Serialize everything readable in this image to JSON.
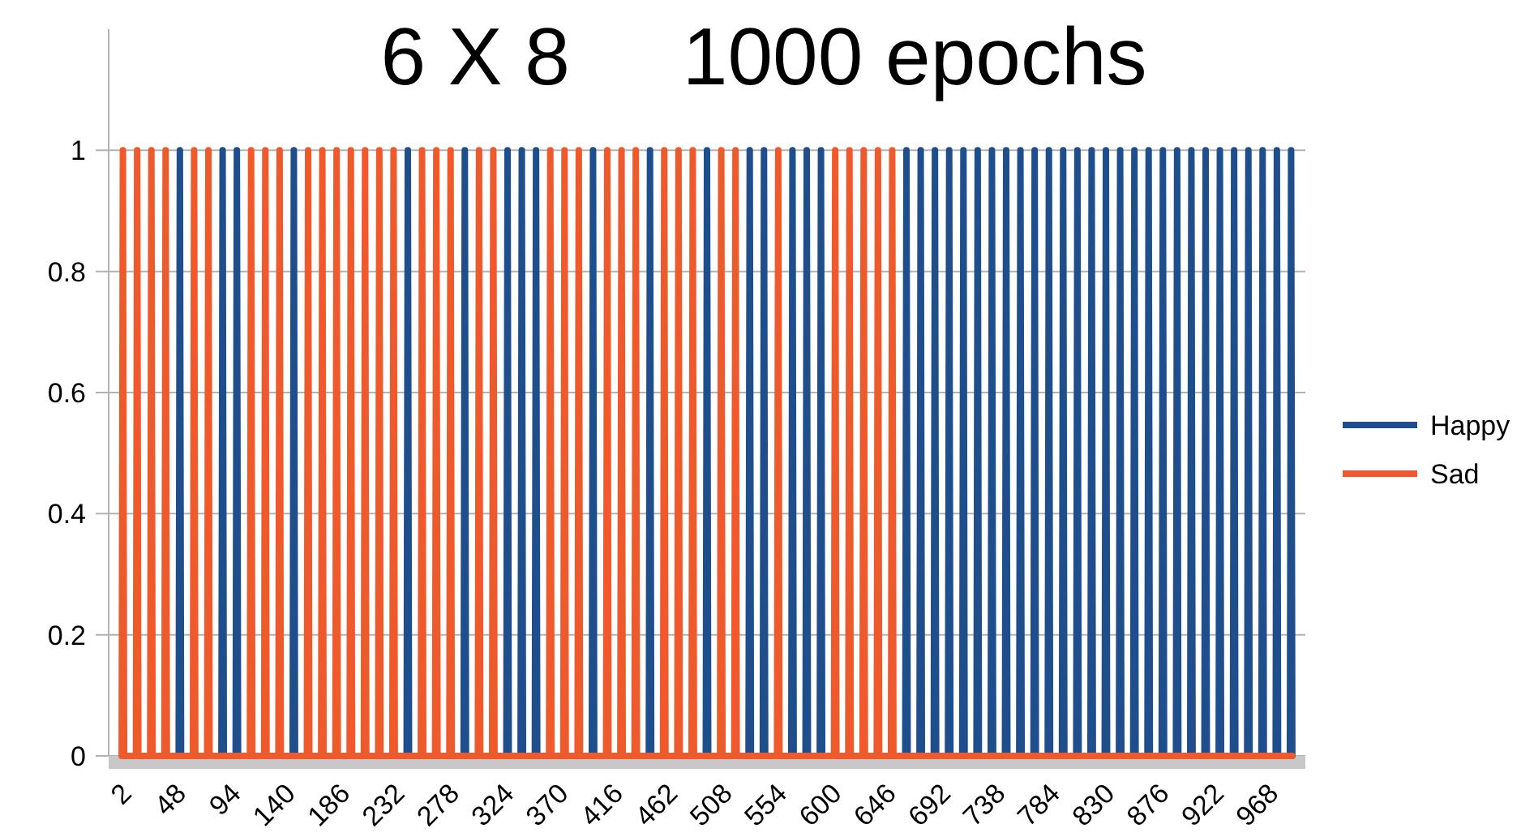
{
  "chart_data": {
    "type": "line",
    "title": "6 X 8     1000 epochs",
    "x": [
      5,
      6,
      7,
      17,
      18,
      19,
      29,
      30,
      31,
      41,
      42,
      43,
      53,
      54,
      55,
      65,
      66,
      67,
      77,
      78,
      79,
      89,
      90,
      91,
      101,
      102,
      103,
      113,
      114,
      115,
      125,
      126,
      127,
      137,
      138,
      139,
      149,
      150,
      151,
      161,
      162,
      163,
      173,
      174,
      175,
      185,
      186,
      187,
      197,
      198,
      199,
      209,
      210,
      211,
      221,
      222,
      223,
      233,
      234,
      235,
      245,
      246,
      247,
      257,
      258,
      259,
      269,
      270,
      271,
      281,
      282,
      283,
      293,
      294,
      295,
      305,
      306,
      307,
      317,
      318,
      319,
      329,
      330,
      331,
      341,
      342,
      343,
      353,
      354,
      355,
      365,
      366,
      367,
      377,
      378,
      379,
      389,
      390,
      391,
      401,
      402,
      403,
      413,
      414,
      415,
      425,
      426,
      427,
      437,
      438,
      439,
      449,
      450,
      451,
      461,
      462,
      463,
      473,
      474,
      475,
      485,
      486,
      487,
      497,
      498,
      499,
      509,
      510,
      511,
      521,
      522,
      523,
      533,
      534,
      535,
      545,
      546,
      547,
      557,
      558,
      559,
      569,
      570,
      571,
      581,
      582,
      583,
      593,
      594,
      595,
      605,
      606,
      607,
      617,
      618,
      619,
      629,
      630,
      631,
      641,
      642,
      643,
      653,
      654,
      655,
      665,
      666,
      667,
      677,
      678,
      679,
      689,
      690,
      691,
      701,
      702,
      703,
      713,
      714,
      715,
      725,
      726,
      727,
      737,
      738,
      739,
      749,
      750,
      751,
      761,
      762,
      763,
      773,
      774,
      775,
      785,
      786,
      787,
      797,
      798,
      799,
      809,
      810,
      811,
      821,
      822,
      823,
      833,
      834,
      835,
      845,
      846,
      847,
      857,
      858,
      859,
      869,
      870,
      871,
      881,
      882,
      883,
      893,
      894,
      895,
      905,
      906,
      907,
      917,
      918,
      919,
      929,
      930,
      931,
      941,
      942,
      943,
      953,
      954,
      955,
      965,
      966,
      967,
      977,
      978,
      979,
      989,
      990,
      991
    ],
    "series": [
      {
        "name": "Happy",
        "color": "#1f4e8c",
        "values": [
          null,
          null,
          null,
          null,
          null,
          null,
          null,
          null,
          null,
          null,
          null,
          null,
          0,
          1,
          0,
          0,
          0,
          0,
          0,
          0,
          0,
          0,
          1,
          0,
          0,
          1,
          0,
          0,
          0,
          0,
          0,
          0,
          0,
          0,
          0,
          0,
          0,
          1,
          0,
          0,
          0,
          0,
          0,
          0,
          0,
          0,
          0,
          0,
          0,
          0,
          0,
          0,
          0,
          0,
          0,
          0,
          0,
          0,
          0,
          0,
          0,
          1,
          0,
          0,
          0,
          0,
          0,
          0,
          0,
          0,
          0,
          0,
          0,
          1,
          0,
          0,
          0,
          0,
          0,
          0,
          0,
          0,
          1,
          0,
          0,
          1,
          0,
          0,
          1,
          0,
          0,
          0,
          0,
          0,
          0,
          0,
          0,
          0,
          0,
          0,
          1,
          0,
          0,
          0,
          0,
          0,
          0,
          0,
          0,
          0,
          0,
          0,
          1,
          0,
          0,
          0,
          0,
          0,
          0,
          0,
          0,
          0,
          0,
          0,
          1,
          0,
          0,
          0,
          0,
          0,
          0,
          0,
          0,
          1,
          0,
          0,
          1,
          0,
          0,
          0,
          0,
          0,
          1,
          0,
          0,
          1,
          0,
          0,
          1,
          0,
          0,
          0,
          0,
          0,
          0,
          0,
          0,
          0,
          0,
          0,
          0,
          0,
          0,
          0,
          0,
          0,
          1,
          0,
          0,
          1,
          0,
          0,
          1,
          0,
          0,
          1,
          0,
          0,
          1,
          0,
          0,
          1,
          0,
          0,
          1,
          0,
          0,
          1,
          0,
          0,
          1,
          0,
          0,
          1,
          0,
          0,
          1,
          0,
          0,
          1,
          0,
          0,
          1,
          0,
          0,
          1,
          0,
          0,
          1,
          0,
          0,
          1,
          0,
          0,
          1,
          0,
          0,
          1,
          0,
          0,
          1,
          0,
          0,
          1,
          0,
          0,
          1,
          0,
          0,
          1,
          0,
          0,
          1,
          0,
          0,
          1,
          0,
          0,
          1,
          0,
          0,
          1,
          0,
          0,
          1,
          0,
          0,
          1,
          0
        ]
      },
      {
        "name": "Sad",
        "color": "#ee5a2c",
        "values": [
          0,
          1,
          0,
          0,
          1,
          0,
          0,
          1,
          0,
          0,
          1,
          0,
          0,
          0,
          0,
          0,
          1,
          0,
          0,
          1,
          0,
          0,
          0,
          0,
          0,
          0,
          0,
          0,
          1,
          0,
          0,
          1,
          0,
          0,
          1,
          0,
          0,
          0,
          0,
          0,
          1,
          0,
          0,
          1,
          0,
          0,
          1,
          0,
          0,
          1,
          0,
          0,
          1,
          0,
          0,
          1,
          0,
          0,
          1,
          0,
          0,
          0,
          0,
          0,
          1,
          0,
          0,
          1,
          0,
          0,
          1,
          0,
          0,
          0,
          0,
          0,
          1,
          0,
          0,
          1,
          0,
          0,
          0,
          0,
          0,
          0,
          0,
          0,
          0,
          0,
          0,
          1,
          0,
          0,
          1,
          0,
          0,
          1,
          0,
          0,
          0,
          0,
          0,
          1,
          0,
          0,
          1,
          0,
          0,
          1,
          0,
          0,
          0,
          0,
          0,
          1,
          0,
          0,
          1,
          0,
          0,
          1,
          0,
          0,
          0,
          0,
          0,
          1,
          0,
          0,
          1,
          0,
          0,
          0,
          0,
          0,
          0,
          0,
          0,
          1,
          0,
          0,
          0,
          0,
          0,
          0,
          0,
          0,
          0,
          0,
          0,
          1,
          0,
          0,
          1,
          0,
          0,
          1,
          0,
          0,
          1,
          0,
          0,
          1,
          0,
          0,
          0,
          0,
          0,
          0,
          0,
          0,
          0,
          0,
          0,
          0,
          0,
          0,
          0,
          0,
          0,
          0,
          0,
          0,
          0,
          0,
          0,
          0,
          0,
          0,
          0,
          0,
          0,
          0,
          0,
          0,
          0,
          0,
          0,
          0,
          0,
          0,
          0,
          0,
          0,
          0,
          0,
          0,
          0,
          0,
          0,
          0,
          0,
          0,
          0,
          0,
          0,
          0,
          0,
          0,
          0,
          0,
          0,
          0,
          0,
          0,
          0,
          0,
          0,
          0,
          0,
          0,
          0,
          0,
          0,
          0,
          0,
          0,
          0,
          0,
          0,
          0,
          0,
          0,
          0,
          0,
          0,
          0,
          0
        ]
      }
    ],
    "xlim": [
      -6,
      1002
    ],
    "xticks": [
      2,
      48,
      94,
      140,
      186,
      232,
      278,
      324,
      370,
      416,
      462,
      508,
      554,
      600,
      646,
      692,
      738,
      784,
      830,
      876,
      922,
      968
    ],
    "ylim": [
      0,
      1.2
    ],
    "yticks": [
      0,
      0.2,
      0.4,
      0.6,
      0.8,
      1
    ],
    "grid": "y",
    "legend": "right",
    "marker": "none",
    "line_style": "solid"
  }
}
